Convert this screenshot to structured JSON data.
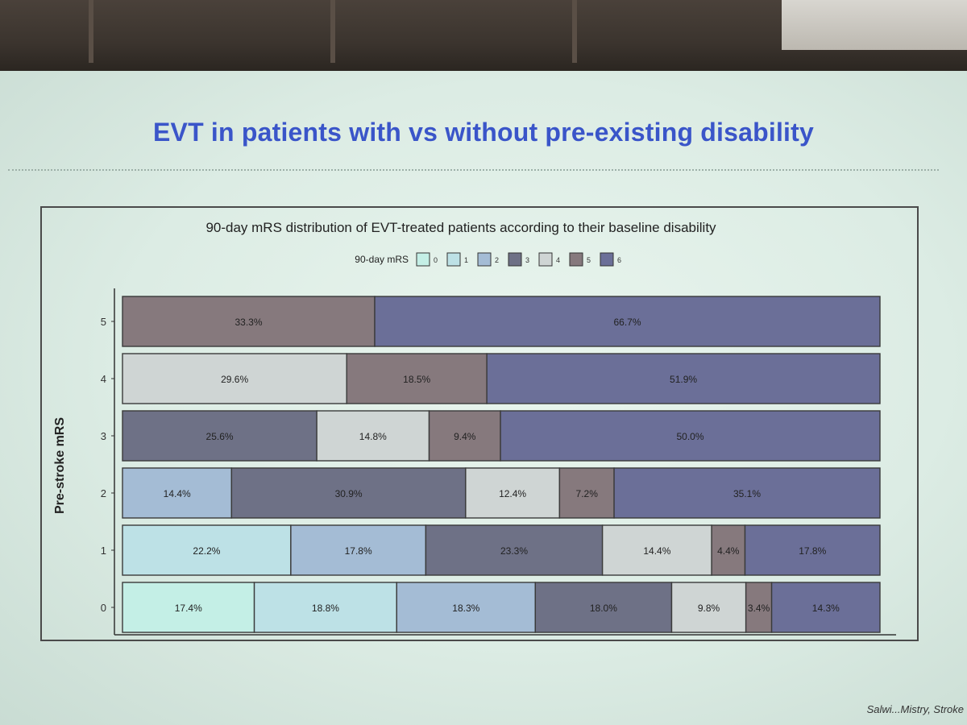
{
  "slide": {
    "title": "EVT in patients with vs without pre-existing disability",
    "citation": "Salwi...Mistry, Stroke"
  },
  "chart_data": {
    "type": "bar",
    "orientation": "horizontal",
    "stacked": true,
    "title": "90-day mRS distribution of EVT-treated patients according to their baseline disability",
    "ylabel": "Pre-stroke mRS",
    "legend_title": "90-day mRS",
    "legend_placement": "top",
    "categories": [
      "5",
      "4",
      "3",
      "2",
      "1",
      "0"
    ],
    "series": [
      {
        "name": "0",
        "color": "#c4efe6",
        "values": [
          0,
          0,
          0,
          0,
          0,
          17.4
        ],
        "labels": [
          "",
          "",
          "",
          "",
          "",
          "17.4%"
        ]
      },
      {
        "name": "1",
        "color": "#bde1e6",
        "values": [
          0,
          0,
          0,
          0,
          22.2,
          18.8
        ],
        "labels": [
          "",
          "",
          "",
          "",
          "22.2%",
          "18.8%"
        ]
      },
      {
        "name": "2",
        "color": "#a4bcd5",
        "values": [
          0,
          0,
          0,
          14.4,
          17.8,
          18.3
        ],
        "labels": [
          "",
          "",
          "",
          "14.4%",
          "17.8%",
          "18.3%"
        ]
      },
      {
        "name": "3",
        "color": "#6e7186",
        "values": [
          0,
          0,
          25.6,
          30.9,
          23.3,
          18.0
        ],
        "labels": [
          "",
          "",
          "25.6%",
          "30.9%",
          "23.3%",
          "18.0%"
        ]
      },
      {
        "name": "4",
        "color": "#cfd5d4",
        "values": [
          0,
          29.6,
          14.8,
          12.4,
          14.4,
          9.8
        ],
        "labels": [
          "",
          "29.6%",
          "14.8%",
          "12.4%",
          "14.4%",
          "9.8%"
        ]
      },
      {
        "name": "5",
        "color": "#86797d",
        "values": [
          33.3,
          18.5,
          9.4,
          7.2,
          4.4,
          3.4
        ],
        "labels": [
          "33.3%",
          "18.5%",
          "9.4%",
          "7.2%",
          "4.4%",
          "3.4%"
        ]
      },
      {
        "name": "6",
        "color": "#6b6f98",
        "values": [
          66.7,
          51.9,
          50.0,
          35.1,
          17.8,
          14.3
        ],
        "labels": [
          "66.7%",
          "51.9%",
          "50.0%",
          "35.1%",
          "17.8%",
          "14.3%"
        ]
      }
    ],
    "xlim": [
      0,
      100
    ],
    "grid": false
  }
}
